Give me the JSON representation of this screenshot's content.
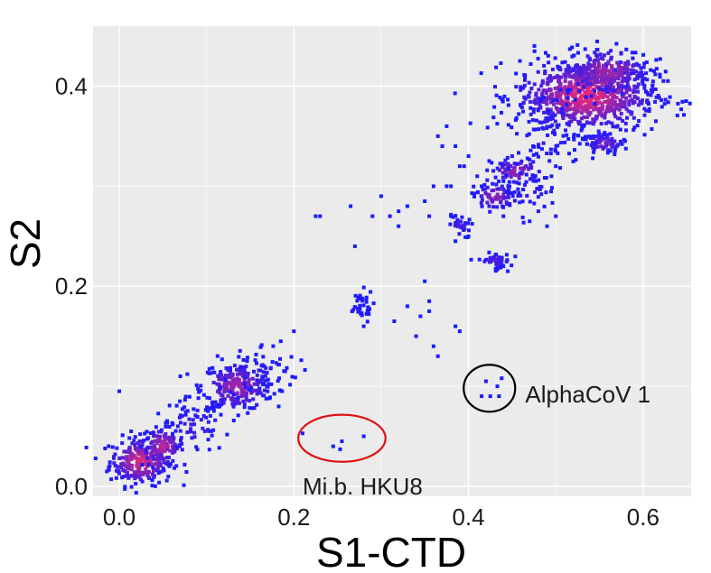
{
  "chart_data": {
    "type": "scatter",
    "title": "",
    "xlabel": "S1-CTD",
    "ylabel": "S2",
    "xlim": [
      -0.03,
      0.655
    ],
    "ylim": [
      -0.01,
      0.46
    ],
    "x_ticks": [
      "0.0",
      "0.2",
      "0.4",
      "0.6"
    ],
    "x_tick_values": [
      0.0,
      0.2,
      0.4,
      0.6
    ],
    "y_ticks": [
      "0.0",
      "0.2",
      "0.4"
    ],
    "y_tick_values": [
      0.0,
      0.2,
      0.4
    ],
    "grid": true,
    "background_color": "#ebebeb",
    "grid_color": "#ffffff",
    "density_color_low": "#1a1aff",
    "density_color_high": "#ff2a6a",
    "clusters": [
      {
        "cx": 0.025,
        "cy": 0.025,
        "sx": 0.018,
        "sy": 0.012,
        "n": 260,
        "density": 0.85
      },
      {
        "cx": 0.05,
        "cy": 0.04,
        "sx": 0.012,
        "sy": 0.01,
        "n": 110,
        "density": 0.7
      },
      {
        "cx": 0.085,
        "cy": 0.06,
        "sx": 0.02,
        "sy": 0.014,
        "n": 70,
        "density": 0.15
      },
      {
        "cx": 0.135,
        "cy": 0.1,
        "sx": 0.02,
        "sy": 0.012,
        "n": 230,
        "density": 0.6
      },
      {
        "cx": 0.165,
        "cy": 0.115,
        "sx": 0.02,
        "sy": 0.014,
        "n": 60,
        "density": 0.1
      },
      {
        "cx": 0.275,
        "cy": 0.18,
        "sx": 0.008,
        "sy": 0.008,
        "n": 35,
        "density": 0.05
      },
      {
        "cx": 0.39,
        "cy": 0.26,
        "sx": 0.006,
        "sy": 0.006,
        "n": 28,
        "density": 0.2
      },
      {
        "cx": 0.43,
        "cy": 0.29,
        "sx": 0.012,
        "sy": 0.007,
        "n": 75,
        "density": 0.5
      },
      {
        "cx": 0.455,
        "cy": 0.315,
        "sx": 0.015,
        "sy": 0.007,
        "n": 85,
        "density": 0.55
      },
      {
        "cx": 0.43,
        "cy": 0.225,
        "sx": 0.009,
        "sy": 0.004,
        "n": 45,
        "density": 0.25
      },
      {
        "cx": 0.47,
        "cy": 0.295,
        "sx": 0.015,
        "sy": 0.01,
        "n": 35,
        "density": 0.1
      },
      {
        "cx": 0.535,
        "cy": 0.39,
        "sx": 0.04,
        "sy": 0.018,
        "n": 750,
        "density": 0.9
      },
      {
        "cx": 0.56,
        "cy": 0.415,
        "sx": 0.025,
        "sy": 0.012,
        "n": 180,
        "density": 0.6
      },
      {
        "cx": 0.555,
        "cy": 0.343,
        "sx": 0.012,
        "sy": 0.005,
        "n": 60,
        "density": 0.4
      },
      {
        "cx": 0.495,
        "cy": 0.355,
        "sx": 0.02,
        "sy": 0.02,
        "n": 70,
        "density": 0.1
      }
    ],
    "sparse_points": [
      [
        0.0,
        0.095
      ],
      [
        0.07,
        0.11
      ],
      [
        0.185,
        0.145
      ],
      [
        0.2,
        0.155
      ],
      [
        0.225,
        0.27
      ],
      [
        0.23,
        0.27
      ],
      [
        0.265,
        0.28
      ],
      [
        0.27,
        0.24
      ],
      [
        0.3,
        0.29
      ],
      [
        0.31,
        0.27
      ],
      [
        0.32,
        0.275
      ],
      [
        0.33,
        0.28
      ],
      [
        0.35,
        0.285
      ],
      [
        0.355,
        0.27
      ],
      [
        0.36,
        0.3
      ],
      [
        0.375,
        0.3
      ],
      [
        0.38,
        0.3
      ],
      [
        0.39,
        0.32
      ],
      [
        0.395,
        0.32
      ],
      [
        0.4,
        0.33
      ],
      [
        0.33,
        0.18
      ],
      [
        0.345,
        0.17
      ],
      [
        0.34,
        0.15
      ],
      [
        0.355,
        0.175
      ],
      [
        0.355,
        0.185
      ],
      [
        0.36,
        0.14
      ],
      [
        0.365,
        0.13
      ],
      [
        0.385,
        0.16
      ],
      [
        0.39,
        0.155
      ],
      [
        0.35,
        0.205
      ],
      [
        0.315,
        0.165
      ],
      [
        0.365,
        0.35
      ],
      [
        0.37,
        0.34
      ],
      [
        0.385,
        0.34
      ],
      [
        0.41,
        0.31
      ],
      [
        0.415,
        0.3
      ],
      [
        0.44,
        0.27
      ],
      [
        0.47,
        0.265
      ],
      [
        0.48,
        0.275
      ],
      [
        0.5,
        0.27
      ],
      [
        0.49,
        0.26
      ],
      [
        0.45,
        0.33
      ],
      [
        0.5,
        0.32
      ],
      [
        0.495,
        0.31
      ],
      [
        0.4,
        0.25
      ],
      [
        0.385,
        0.245
      ],
      [
        0.38,
        0.27
      ],
      [
        0.44,
        0.22
      ],
      [
        0.445,
        0.215
      ],
      [
        0.375,
        0.36
      ],
      [
        0.29,
        0.27
      ],
      [
        0.32,
        0.26
      ],
      [
        0.28,
        0.16
      ],
      [
        0.285,
        0.175
      ]
    ],
    "highlighted_points": [
      [
        0.21,
        0.053
      ],
      [
        0.245,
        0.04
      ],
      [
        0.255,
        0.045
      ],
      [
        0.253,
        0.037
      ],
      [
        0.28,
        0.05
      ],
      [
        0.415,
        0.09
      ],
      [
        0.42,
        0.105
      ],
      [
        0.425,
        0.09
      ],
      [
        0.433,
        0.1
      ],
      [
        0.435,
        0.09
      ],
      [
        0.438,
        0.108
      ]
    ],
    "annotations": [
      {
        "label": "Mi.b. HKU8",
        "circle_center": [
          0.255,
          0.048
        ],
        "circle_rx": 0.05,
        "circle_ry": 0.0235,
        "circle_color": "#e01010",
        "text_pos": [
          0.21,
          0.0
        ]
      },
      {
        "label": "AlphaCoV 1",
        "circle_center": [
          0.424,
          0.098
        ],
        "circle_rx": 0.0295,
        "circle_ry": 0.0235,
        "circle_color": "#000000",
        "text_pos": [
          0.465,
          0.092
        ]
      }
    ]
  }
}
